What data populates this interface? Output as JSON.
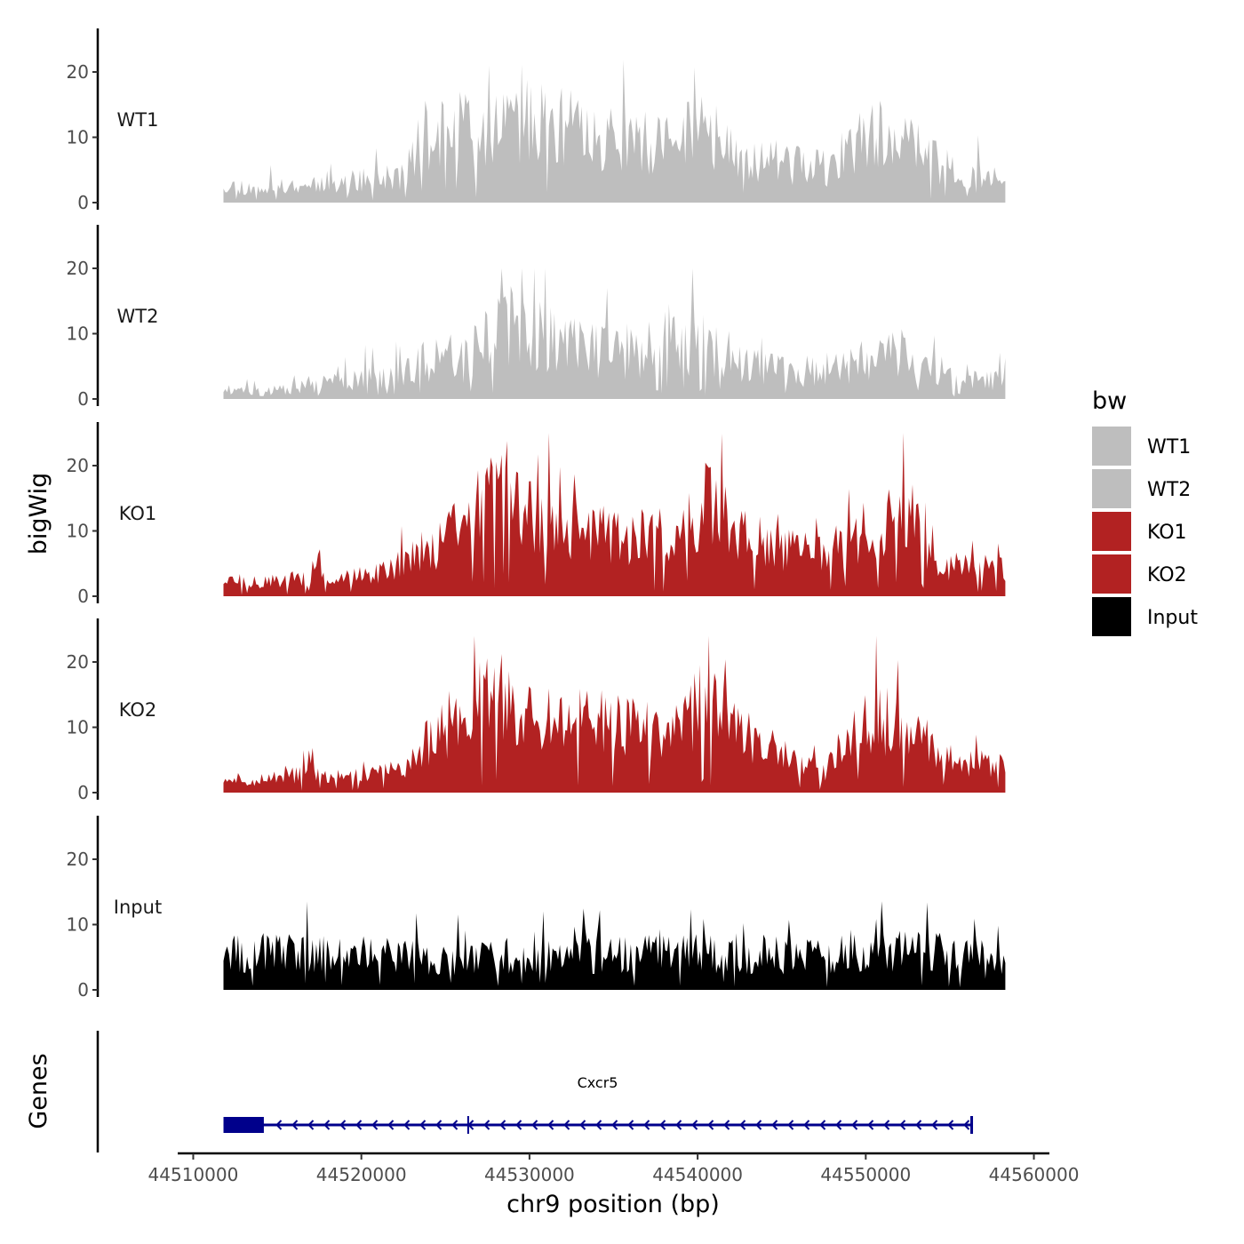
{
  "chart_data": {
    "type": "area",
    "title": "",
    "xlabel": "chr9 position (bp)",
    "ylabel": "bigWig",
    "genes_axis_label": "Genes",
    "xlim": [
      44509500,
      44560500
    ],
    "x_ticks": [
      44510000,
      44520000,
      44530000,
      44540000,
      44550000,
      44560000
    ],
    "x_tick_labels": [
      "44510000",
      "44520000",
      "44530000",
      "44540000",
      "44550000",
      "44560000"
    ],
    "ylim": [
      0,
      27
    ],
    "y_ticks": [
      0,
      10,
      20
    ],
    "y_tick_labels": [
      "0",
      "10",
      "20"
    ],
    "legend": {
      "title": "bw",
      "position": "right",
      "entries": [
        {
          "label": "WT1",
          "color": "#bebebe"
        },
        {
          "label": "WT2",
          "color": "#bebebe"
        },
        {
          "label": "KO1",
          "color": "#b22222"
        },
        {
          "label": "KO2",
          "color": "#b22222"
        },
        {
          "label": "Input",
          "color": "#000000"
        }
      ]
    },
    "signal_range_bp": [
      44511800,
      44558300
    ],
    "series": [
      {
        "name": "WT1",
        "color": "#bebebe",
        "profile": [
          {
            "x": 44511800,
            "y": 3
          },
          {
            "x": 44514000,
            "y": 2
          },
          {
            "x": 44517000,
            "y": 3
          },
          {
            "x": 44520000,
            "y": 3.5
          },
          {
            "x": 44522500,
            "y": 4
          },
          {
            "x": 44523500,
            "y": 10
          },
          {
            "x": 44526000,
            "y": 11
          },
          {
            "x": 44528500,
            "y": 13
          },
          {
            "x": 44530500,
            "y": 12
          },
          {
            "x": 44533000,
            "y": 11
          },
          {
            "x": 44536000,
            "y": 9
          },
          {
            "x": 44538500,
            "y": 9
          },
          {
            "x": 44540000,
            "y": 12
          },
          {
            "x": 44542000,
            "y": 8
          },
          {
            "x": 44545000,
            "y": 6
          },
          {
            "x": 44548000,
            "y": 5
          },
          {
            "x": 44550500,
            "y": 11
          },
          {
            "x": 44552500,
            "y": 9
          },
          {
            "x": 44555000,
            "y": 5
          },
          {
            "x": 44558300,
            "y": 3
          }
        ],
        "noise": 0.55,
        "peak_prob": 0.09,
        "peak_scale": 1.7,
        "max": 22,
        "seed": 11
      },
      {
        "name": "WT2",
        "color": "#bebebe",
        "profile": [
          {
            "x": 44511800,
            "y": 1.5
          },
          {
            "x": 44514000,
            "y": 1
          },
          {
            "x": 44517000,
            "y": 2
          },
          {
            "x": 44520000,
            "y": 3
          },
          {
            "x": 44522500,
            "y": 4
          },
          {
            "x": 44524000,
            "y": 6
          },
          {
            "x": 44526000,
            "y": 8
          },
          {
            "x": 44528500,
            "y": 11
          },
          {
            "x": 44530500,
            "y": 10
          },
          {
            "x": 44533000,
            "y": 8
          },
          {
            "x": 44536000,
            "y": 7
          },
          {
            "x": 44539000,
            "y": 9
          },
          {
            "x": 44541000,
            "y": 8
          },
          {
            "x": 44543000,
            "y": 5
          },
          {
            "x": 44546000,
            "y": 4
          },
          {
            "x": 44549000,
            "y": 5
          },
          {
            "x": 44551500,
            "y": 8
          },
          {
            "x": 44553500,
            "y": 5
          },
          {
            "x": 44556000,
            "y": 3.5
          },
          {
            "x": 44558300,
            "y": 2.5
          }
        ],
        "noise": 0.6,
        "peak_prob": 0.08,
        "peak_scale": 1.7,
        "max": 20,
        "seed": 23
      },
      {
        "name": "KO1",
        "color": "#b22222",
        "profile": [
          {
            "x": 44511800,
            "y": 2.5
          },
          {
            "x": 44514000,
            "y": 2
          },
          {
            "x": 44517000,
            "y": 3
          },
          {
            "x": 44520000,
            "y": 3
          },
          {
            "x": 44522500,
            "y": 5
          },
          {
            "x": 44524500,
            "y": 8
          },
          {
            "x": 44526500,
            "y": 13
          },
          {
            "x": 44528500,
            "y": 16
          },
          {
            "x": 44530500,
            "y": 11
          },
          {
            "x": 44533000,
            "y": 10
          },
          {
            "x": 44536000,
            "y": 9
          },
          {
            "x": 44538500,
            "y": 9
          },
          {
            "x": 44540500,
            "y": 15
          },
          {
            "x": 44542500,
            "y": 9
          },
          {
            "x": 44545500,
            "y": 7
          },
          {
            "x": 44548000,
            "y": 6
          },
          {
            "x": 44550500,
            "y": 10
          },
          {
            "x": 44552500,
            "y": 13
          },
          {
            "x": 44554000,
            "y": 5
          },
          {
            "x": 44558300,
            "y": 4
          }
        ],
        "noise": 0.5,
        "peak_prob": 0.08,
        "peak_scale": 1.6,
        "max": 25,
        "seed": 37
      },
      {
        "name": "KO2",
        "color": "#b22222",
        "profile": [
          {
            "x": 44511800,
            "y": 2
          },
          {
            "x": 44514000,
            "y": 2
          },
          {
            "x": 44517000,
            "y": 3
          },
          {
            "x": 44520000,
            "y": 2.5
          },
          {
            "x": 44522500,
            "y": 4
          },
          {
            "x": 44524000,
            "y": 8
          },
          {
            "x": 44526500,
            "y": 13
          },
          {
            "x": 44528500,
            "y": 15
          },
          {
            "x": 44530500,
            "y": 12
          },
          {
            "x": 44533000,
            "y": 12
          },
          {
            "x": 44536000,
            "y": 10
          },
          {
            "x": 44538500,
            "y": 9
          },
          {
            "x": 44540500,
            "y": 14
          },
          {
            "x": 44542500,
            "y": 9
          },
          {
            "x": 44545000,
            "y": 6
          },
          {
            "x": 44547500,
            "y": 3
          },
          {
            "x": 44550500,
            "y": 12
          },
          {
            "x": 44552500,
            "y": 9
          },
          {
            "x": 44555000,
            "y": 5
          },
          {
            "x": 44558300,
            "y": 4
          }
        ],
        "noise": 0.5,
        "peak_prob": 0.08,
        "peak_scale": 1.6,
        "max": 24,
        "seed": 51
      },
      {
        "name": "Input",
        "color": "#000000",
        "profile": [
          {
            "x": 44511800,
            "y": 6
          },
          {
            "x": 44516000,
            "y": 5.5
          },
          {
            "x": 44520000,
            "y": 5.5
          },
          {
            "x": 44524000,
            "y": 5
          },
          {
            "x": 44528000,
            "y": 5
          },
          {
            "x": 44532000,
            "y": 5
          },
          {
            "x": 44536000,
            "y": 5.5
          },
          {
            "x": 44540000,
            "y": 5.5
          },
          {
            "x": 44544000,
            "y": 5
          },
          {
            "x": 44548000,
            "y": 5.5
          },
          {
            "x": 44552000,
            "y": 6
          },
          {
            "x": 44556000,
            "y": 5.5
          },
          {
            "x": 44558300,
            "y": 5
          }
        ],
        "noise": 0.55,
        "peak_prob": 0.1,
        "peak_scale": 1.6,
        "max": 14,
        "seed": 67
      }
    ],
    "genes": [
      {
        "name": "Cxcr5",
        "start": 44511800,
        "end": 44556300,
        "strand": "-",
        "color": "#00008b",
        "exons": [
          [
            44511800,
            44514200
          ],
          [
            44526300,
            44526350
          ]
        ]
      }
    ]
  }
}
